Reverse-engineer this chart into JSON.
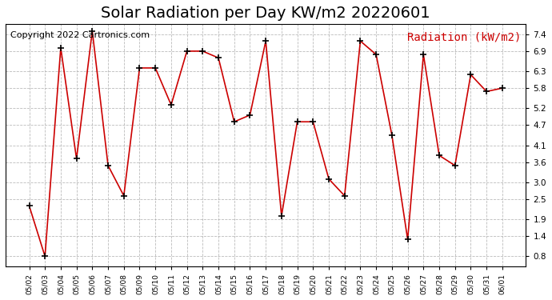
{
  "title": "Solar Radiation per Day KW/m2 20220601",
  "copyright": "Copyright 2022 Cartronics.com",
  "legend_label": "Radiation (kW/m2)",
  "dates": [
    "05/02",
    "05/03",
    "05/04",
    "05/05",
    "05/06",
    "05/07",
    "05/08",
    "05/09",
    "05/10",
    "05/11",
    "05/12",
    "05/13",
    "05/14",
    "05/15",
    "05/16",
    "05/17",
    "05/18",
    "05/19",
    "05/20",
    "05/21",
    "05/22",
    "05/23",
    "05/24",
    "05/25",
    "05/26",
    "05/27",
    "05/28",
    "05/29",
    "05/30",
    "05/31",
    "06/01"
  ],
  "values": [
    2.3,
    0.8,
    7.0,
    3.7,
    7.5,
    3.5,
    2.6,
    6.4,
    6.4,
    5.3,
    6.9,
    6.9,
    6.7,
    4.8,
    5.0,
    7.2,
    2.0,
    4.8,
    4.8,
    3.1,
    2.6,
    7.2,
    6.8,
    4.4,
    1.3,
    6.8,
    3.8,
    3.5,
    6.2,
    5.7,
    5.8
  ],
  "line_color": "#cc0000",
  "marker_color": "#000000",
  "background_color": "#ffffff",
  "grid_color": "#aaaaaa",
  "ylim": [
    0.5,
    7.7
  ],
  "yticks": [
    0.8,
    1.4,
    1.9,
    2.5,
    3.0,
    3.6,
    4.1,
    4.7,
    5.2,
    5.8,
    6.3,
    6.9,
    7.4
  ],
  "title_fontsize": 14,
  "copyright_fontsize": 8,
  "legend_fontsize": 10
}
